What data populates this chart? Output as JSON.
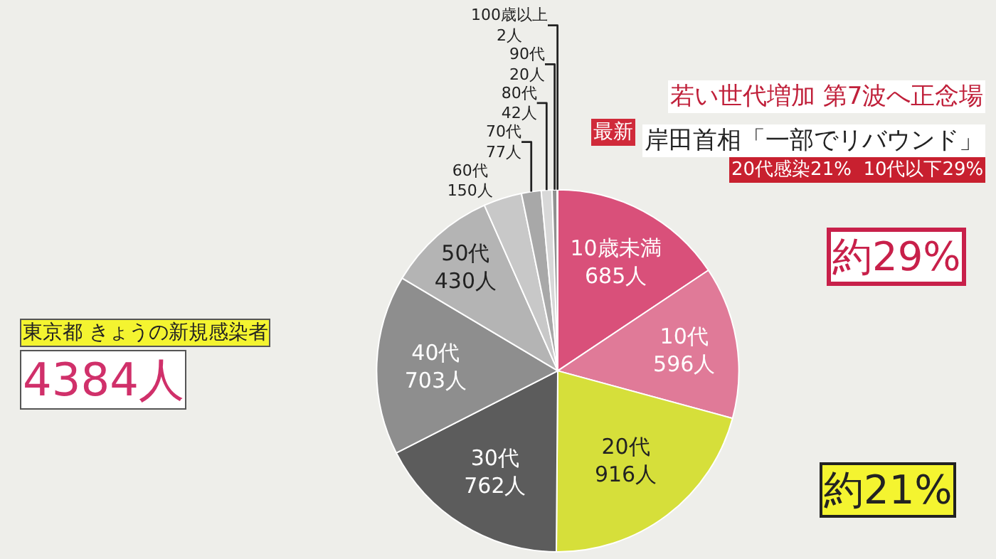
{
  "chart_data": {
    "type": "pie",
    "title": "若い世代増加 第7波へ正念場",
    "subtitle": "岸田首相「一部でリバウンド」",
    "categories": [
      "10歳未満",
      "10代",
      "20代",
      "30代",
      "40代",
      "50代",
      "60代",
      "70代",
      "80代",
      "90代",
      "100歳以上"
    ],
    "values": [
      685,
      596,
      916,
      762,
      703,
      430,
      150,
      77,
      42,
      20,
      2
    ],
    "value_labels": [
      "685人",
      "596人",
      "916人",
      "762人",
      "703人",
      "430人",
      "150人",
      "77人",
      "42人",
      "20人",
      "2人"
    ],
    "colors": [
      "#d9507a",
      "#e07a98",
      "#d6df3a",
      "#5c5c5c",
      "#8e8e8e",
      "#b4b4b4",
      "#c8c8c8",
      "#a8a8a8",
      "#d8d8d8",
      "#909090",
      "#e8e8e8"
    ],
    "annotations": [
      "最新",
      "20代感染21%  10代以下29%",
      "東京都 きょうの新規感染者",
      "4384人",
      "約29%",
      "約21%"
    ],
    "legend": false
  }
}
